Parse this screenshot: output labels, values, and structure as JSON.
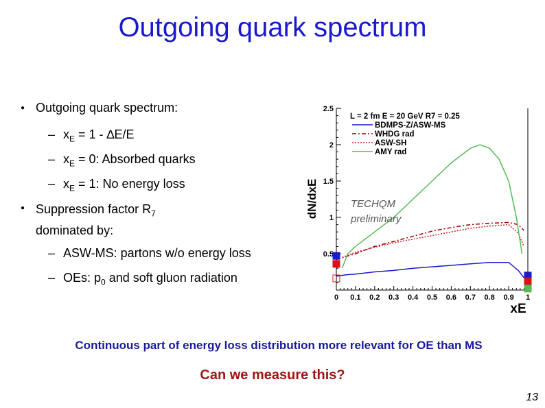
{
  "title": "Outgoing quark spectrum",
  "bullets": {
    "b1": "Outgoing  quark spectrum:",
    "s1": {
      "pre": "x",
      "sub": "E",
      "post": " = 1 - ∆E/E"
    },
    "s2": {
      "pre": "x",
      "sub": "E",
      "post": " = 0: Absorbed quarks"
    },
    "s3": {
      "pre": "x",
      "sub": "E",
      "post": " = 1: No energy loss"
    },
    "b2_line1_pre": "Suppression factor R",
    "b2_line1_sub": "7",
    "b2_line2": "dominated by:",
    "s4": "ASW-MS: partons w/o energy loss",
    "s5": {
      "pre": "OEs: p",
      "sub": "0",
      "post": " and soft gluon radiation"
    }
  },
  "chart_data": {
    "type": "line",
    "title": "L = 2 fm E = 20 GeV R7 = 0.25",
    "xlabel": "xE",
    "ylabel": "dN/dxE",
    "xlim": [
      0,
      1
    ],
    "ylim": [
      0,
      2.5
    ],
    "xticks": [
      "0",
      "0.1",
      "0.2",
      "0.3",
      "0.4",
      "0.5",
      "0.6",
      "0.7",
      "0.8",
      "0.9",
      "1"
    ],
    "yticks": [
      "0.5",
      "1",
      "1.5",
      "2",
      "2.5"
    ],
    "annotation": {
      "line1": "TECHQM",
      "line2": "preliminary"
    },
    "series": [
      {
        "name": "BDMPS-Z/ASW-MS",
        "color": "#1a1acc",
        "style": "solid",
        "x": [
          0.0,
          0.05,
          0.1,
          0.2,
          0.3,
          0.4,
          0.5,
          0.6,
          0.7,
          0.8,
          0.9,
          0.95,
          0.98
        ],
        "y": [
          0.19,
          0.21,
          0.22,
          0.25,
          0.27,
          0.3,
          0.32,
          0.34,
          0.36,
          0.38,
          0.38,
          0.27,
          0.17
        ]
      },
      {
        "name": "WHDG rad",
        "color": "#990000",
        "style": "dashdot",
        "x": [
          0.0,
          0.05,
          0.1,
          0.2,
          0.3,
          0.4,
          0.5,
          0.6,
          0.7,
          0.8,
          0.9,
          0.95,
          0.98
        ],
        "y": [
          0.42,
          0.46,
          0.5,
          0.6,
          0.67,
          0.74,
          0.81,
          0.86,
          0.9,
          0.92,
          0.93,
          0.9,
          0.82
        ]
      },
      {
        "name": "ASW-SH",
        "color": "#cc2222",
        "style": "dotted",
        "x": [
          0.03,
          0.1,
          0.2,
          0.3,
          0.4,
          0.5,
          0.6,
          0.7,
          0.8,
          0.9,
          0.95,
          0.98
        ],
        "y": [
          0.45,
          0.52,
          0.59,
          0.65,
          0.7,
          0.75,
          0.8,
          0.85,
          0.88,
          0.9,
          0.78,
          0.6
        ]
      },
      {
        "name": "AMY rad",
        "color": "#55bb55",
        "style": "solid",
        "x": [
          0.03,
          0.06,
          0.1,
          0.15,
          0.2,
          0.3,
          0.4,
          0.5,
          0.6,
          0.7,
          0.75,
          0.8,
          0.85,
          0.9,
          0.94,
          0.97
        ],
        "y": [
          0.3,
          0.5,
          0.6,
          0.7,
          0.8,
          1.0,
          1.25,
          1.5,
          1.75,
          1.95,
          2.0,
          1.95,
          1.8,
          1.5,
          1.0,
          0.5
        ]
      }
    ],
    "markers": [
      {
        "x": 0.0,
        "y": 0.47,
        "color": "#1a1acc",
        "fill": true
      },
      {
        "x": 0.0,
        "y": 0.36,
        "color": "#dd1111",
        "fill": true
      },
      {
        "x": 0.0,
        "y": 0.16,
        "color": "#dd1111",
        "fill": false
      },
      {
        "x": 1.0,
        "y": 0.2,
        "color": "#1a1acc",
        "fill": true
      },
      {
        "x": 1.0,
        "y": 0.12,
        "color": "#dd1111",
        "fill": true
      },
      {
        "x": 1.0,
        "y": 0.02,
        "color": "#55bb55",
        "fill": true
      }
    ]
  },
  "conclusion": "Continuous part of energy loss distribution more relevant for OE than MS",
  "question": "Can we measure this?",
  "page_number": "13"
}
